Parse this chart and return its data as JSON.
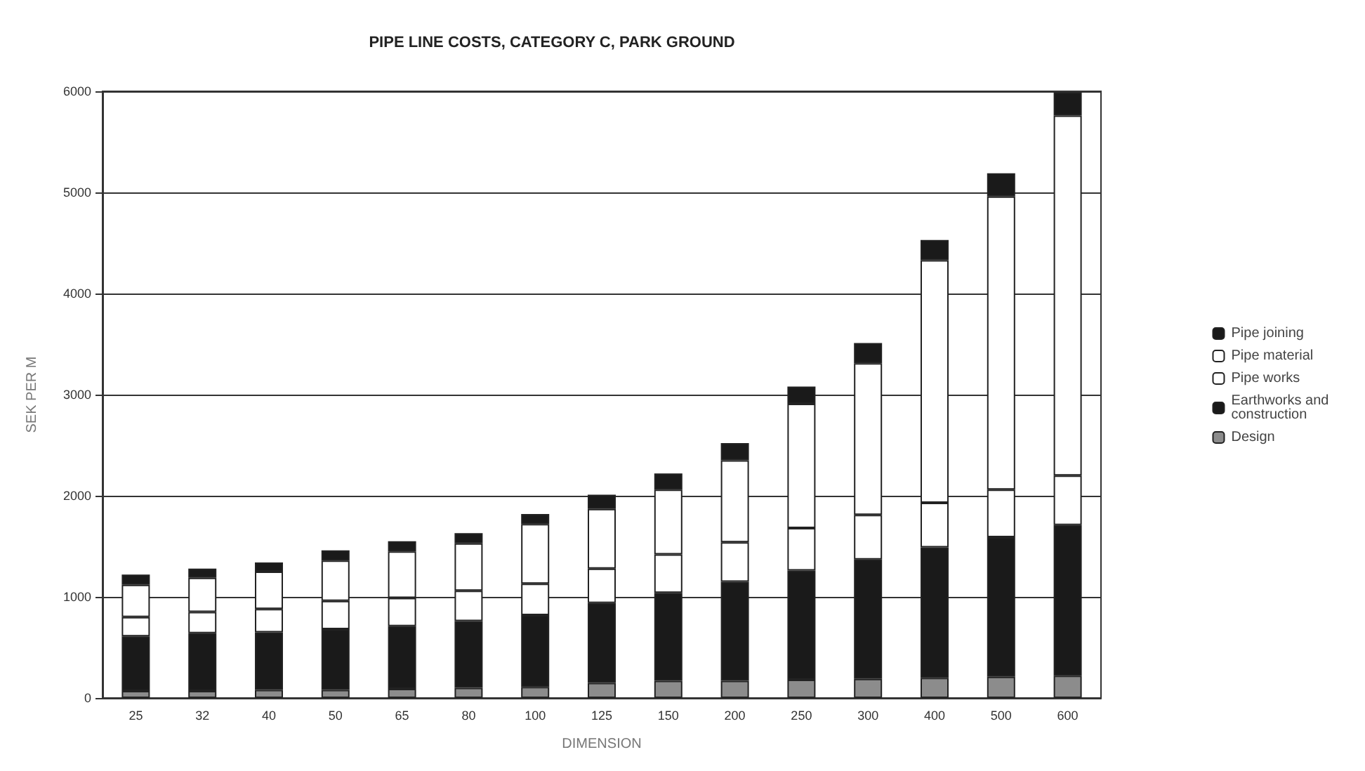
{
  "chart_data": {
    "type": "bar",
    "title": "PIPE LINE COSTS, CATEGORY C, PARK GROUND",
    "xlabel": "DIMENSION",
    "ylabel": "SEK PER M",
    "categories": [
      "25",
      "32",
      "40",
      "50",
      "65",
      "80",
      "100",
      "125",
      "150",
      "200",
      "250",
      "300",
      "400",
      "500",
      "600"
    ],
    "stacked": true,
    "ylim": [
      0,
      6000
    ],
    "yticks": [
      0,
      1000,
      2000,
      3000,
      4000,
      5000,
      6000
    ],
    "grid": "y",
    "legend": "right",
    "series": [
      {
        "name": "Design",
        "color": "#8c8c8c",
        "values": [
          70,
          70,
          80,
          80,
          90,
          100,
          110,
          150,
          170,
          170,
          180,
          190,
          200,
          210,
          220
        ]
      },
      {
        "name": "Earthworks and construction",
        "color": "#1a1a1a",
        "values": [
          540,
          570,
          570,
          600,
          620,
          660,
          710,
          790,
          870,
          980,
          1080,
          1180,
          1290,
          1380,
          1490
        ]
      },
      {
        "name": "Pipe works",
        "color": "#ffffff",
        "values": [
          190,
          210,
          230,
          280,
          280,
          300,
          310,
          340,
          380,
          390,
          420,
          440,
          440,
          470,
          490
        ]
      },
      {
        "name": "Pipe material",
        "color": "#ffffff",
        "values": [
          320,
          340,
          370,
          400,
          460,
          470,
          590,
          590,
          640,
          810,
          1230,
          1500,
          2400,
          2900,
          3560
        ]
      },
      {
        "name": "Pipe joining",
        "color": "#1a1a1a",
        "values": [
          100,
          90,
          90,
          100,
          100,
          100,
          100,
          140,
          160,
          170,
          170,
          200,
          200,
          230,
          230
        ]
      }
    ]
  }
}
